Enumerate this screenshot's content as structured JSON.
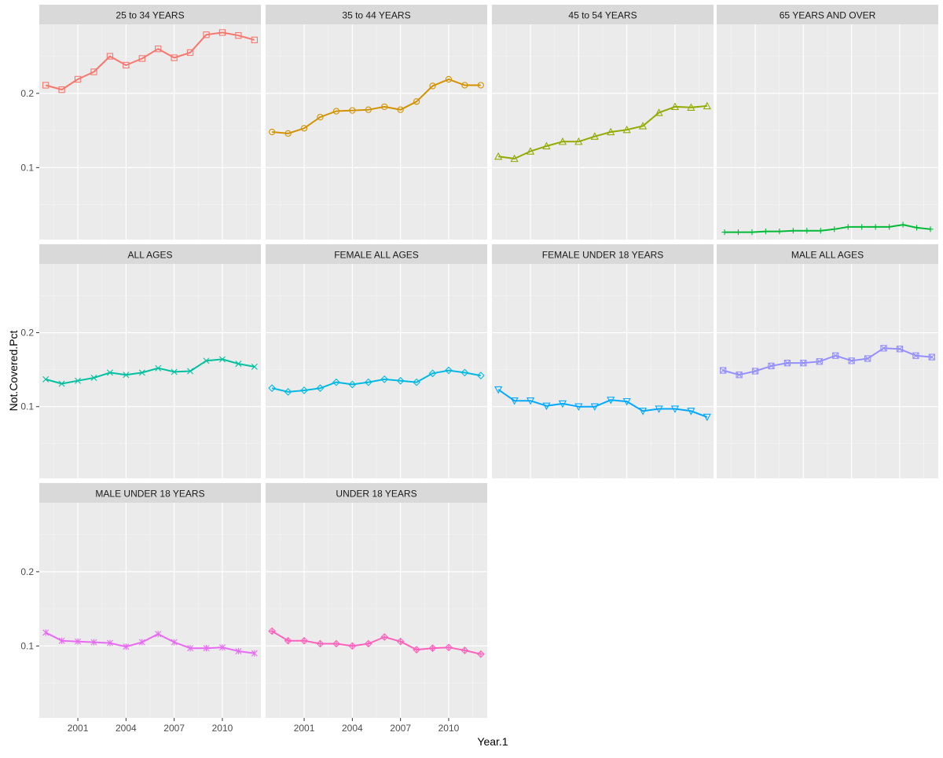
{
  "chart_data": {
    "type": "line",
    "xlabel": "Year.1",
    "ylabel": "Not.Covered.Pct",
    "x": [
      1999,
      2000,
      2001,
      2002,
      2003,
      2004,
      2005,
      2006,
      2007,
      2008,
      2009,
      2010,
      2011,
      2012
    ],
    "xlim": [
      1998.6,
      2012.4
    ],
    "ylim": [
      0.003,
      0.293
    ],
    "x_ticks": [
      2001,
      2004,
      2007,
      2010
    ],
    "x_tick_labels": [
      "2001",
      "2004",
      "2007",
      "2010"
    ],
    "y_ticks": [
      0.1,
      0.2
    ],
    "y_tick_labels": [
      "0.1",
      "0.2"
    ],
    "grid": true,
    "facets": [
      {
        "name": "25 to 34 YEARS",
        "color": "#F8766D",
        "marker": "square",
        "values": [
          0.211,
          0.205,
          0.219,
          0.229,
          0.25,
          0.238,
          0.247,
          0.26,
          0.248,
          0.255,
          0.279,
          0.282,
          0.278,
          0.272
        ]
      },
      {
        "name": "35 to 44 YEARS",
        "color": "#D39200",
        "marker": "circle",
        "values": [
          0.148,
          0.146,
          0.153,
          0.168,
          0.176,
          0.177,
          0.178,
          0.182,
          0.178,
          0.189,
          0.21,
          0.219,
          0.211,
          0.211
        ]
      },
      {
        "name": "45 to 54 YEARS",
        "color": "#93AA00",
        "marker": "triangle",
        "values": [
          0.115,
          0.112,
          0.122,
          0.129,
          0.135,
          0.135,
          0.142,
          0.148,
          0.151,
          0.156,
          0.174,
          0.182,
          0.181,
          0.183
        ],
        "x": [
          1999,
          2000,
          2001,
          2002,
          2003,
          2004,
          2005,
          2006,
          2007,
          2008,
          2009,
          2010,
          2011,
          2012
        ]
      },
      {
        "name": "65 YEARS AND OVER",
        "color": "#00BA38",
        "marker": "plus",
        "values": [
          0.013,
          0.013,
          0.013,
          0.014,
          0.014,
          0.015,
          0.015,
          0.015,
          0.017,
          0.02,
          0.02,
          0.02,
          0.02,
          0.023,
          0.019,
          0.017
        ],
        "x": [
          1999,
          2000,
          2001,
          2002,
          2003,
          2004,
          2005,
          2006,
          2007,
          2008,
          2009,
          2010,
          2011,
          2012,
          2013,
          2014
        ]
      },
      {
        "name": "ALL AGES",
        "color": "#00C19F",
        "marker": "cross",
        "values": [
          0.137,
          0.131,
          0.135,
          0.139,
          0.146,
          0.143,
          0.146,
          0.152,
          0.147,
          0.148,
          0.162,
          0.164,
          0.158,
          0.154
        ]
      },
      {
        "name": "FEMALE ALL AGES",
        "color": "#00B9E3",
        "marker": "diamond",
        "values": [
          0.125,
          0.12,
          0.122,
          0.125,
          0.133,
          0.13,
          0.133,
          0.137,
          0.135,
          0.133,
          0.145,
          0.149,
          0.146,
          0.142
        ]
      },
      {
        "name": "FEMALE UNDER 18 YEARS",
        "color": "#00A9FF",
        "marker": "triangle-down",
        "values": [
          0.123,
          0.108,
          0.108,
          0.101,
          0.104,
          0.1,
          0.1,
          0.109,
          0.107,
          0.094,
          0.097,
          0.097,
          0.094,
          0.086
        ]
      },
      {
        "name": "MALE ALL AGES",
        "color": "#9590FF",
        "marker": "square-cross",
        "values": [
          0.149,
          0.143,
          0.148,
          0.155,
          0.159,
          0.159,
          0.161,
          0.169,
          0.162,
          0.165,
          0.179,
          0.178,
          0.169,
          0.167
        ]
      },
      {
        "name": "MALE UNDER 18 YEARS",
        "color": "#E76BF3",
        "marker": "asterisk",
        "values": [
          0.118,
          0.107,
          0.106,
          0.105,
          0.104,
          0.099,
          0.105,
          0.116,
          0.105,
          0.097,
          0.097,
          0.098,
          0.093,
          0.09
        ]
      },
      {
        "name": "UNDER 18 YEARS",
        "color": "#FF62BC",
        "marker": "diamond-plus",
        "values": [
          0.12,
          0.107,
          0.107,
          0.103,
          0.103,
          0.1,
          0.103,
          0.112,
          0.106,
          0.095,
          0.097,
          0.098,
          0.094,
          0.089
        ]
      }
    ]
  }
}
